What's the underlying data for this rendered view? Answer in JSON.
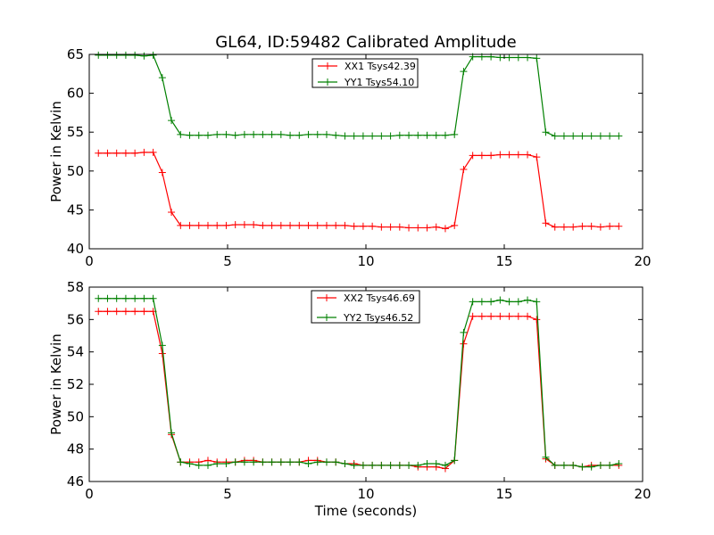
{
  "title": "GL64, ID:59482 Calibrated Amplitude",
  "chart_data": [
    {
      "type": "line",
      "title": "GL64, ID:59482 Calibrated Amplitude",
      "xlabel": "",
      "ylabel": "Power in Kelvin",
      "xlim": [
        0,
        20
      ],
      "ylim": [
        40,
        65
      ],
      "xticks": [
        0,
        5,
        10,
        15,
        20
      ],
      "yticks": [
        40,
        45,
        50,
        55,
        60,
        65
      ],
      "grid": false,
      "legend_placement": "top-center",
      "x": [
        0.33,
        0.66,
        0.99,
        1.32,
        1.65,
        1.98,
        2.31,
        2.64,
        2.97,
        3.3,
        3.63,
        3.96,
        4.29,
        4.62,
        4.95,
        5.28,
        5.61,
        5.94,
        6.27,
        6.6,
        6.93,
        7.26,
        7.59,
        7.92,
        8.25,
        8.58,
        8.91,
        9.24,
        9.57,
        9.9,
        10.23,
        10.56,
        10.89,
        11.22,
        11.55,
        11.88,
        12.21,
        12.54,
        12.87,
        13.2,
        13.53,
        13.86,
        14.19,
        14.52,
        14.85,
        15.18,
        15.51,
        15.84,
        16.17,
        16.5,
        16.83,
        17.16,
        17.49,
        17.82,
        18.15,
        18.48,
        18.81,
        19.14
      ],
      "series": [
        {
          "name": "XX1 Tsys42.39",
          "color": "#ff0000",
          "values": [
            52.3,
            52.3,
            52.3,
            52.3,
            52.3,
            52.4,
            52.4,
            49.8,
            44.7,
            43.0,
            43.0,
            43.0,
            43.0,
            43.0,
            43.0,
            43.1,
            43.1,
            43.1,
            43.0,
            43.0,
            43.0,
            43.0,
            43.0,
            43.0,
            43.0,
            43.0,
            43.0,
            43.0,
            42.9,
            42.9,
            42.9,
            42.8,
            42.8,
            42.8,
            42.7,
            42.7,
            42.7,
            42.8,
            42.6,
            43.0,
            50.2,
            52.0,
            52.0,
            52.0,
            52.1,
            52.1,
            52.1,
            52.1,
            51.8,
            43.3,
            42.8,
            42.8,
            42.8,
            42.9,
            42.9,
            42.8,
            42.9,
            42.9
          ]
        },
        {
          "name": "YY1 Tsys54.10",
          "color": "#008000",
          "values": [
            64.9,
            64.9,
            64.9,
            64.9,
            64.9,
            64.8,
            64.9,
            62.0,
            56.5,
            54.7,
            54.6,
            54.6,
            54.6,
            54.7,
            54.7,
            54.6,
            54.7,
            54.7,
            54.7,
            54.7,
            54.7,
            54.6,
            54.6,
            54.7,
            54.7,
            54.7,
            54.6,
            54.5,
            54.5,
            54.5,
            54.5,
            54.5,
            54.5,
            54.6,
            54.6,
            54.6,
            54.6,
            54.6,
            54.6,
            54.7,
            62.8,
            64.7,
            64.7,
            64.7,
            64.6,
            64.6,
            64.6,
            64.6,
            64.5,
            55.0,
            54.5,
            54.5,
            54.5,
            54.5,
            54.5,
            54.5,
            54.5,
            54.5
          ]
        }
      ]
    },
    {
      "type": "line",
      "title": "",
      "xlabel": "Time (seconds)",
      "ylabel": "Power in Kelvin",
      "xlim": [
        0,
        20
      ],
      "ylim": [
        46,
        58
      ],
      "xticks": [
        0,
        5,
        10,
        15,
        20
      ],
      "yticks": [
        46,
        48,
        50,
        52,
        54,
        56,
        58
      ],
      "grid": false,
      "legend_placement": "top-center",
      "x": [
        0.33,
        0.66,
        0.99,
        1.32,
        1.65,
        1.98,
        2.31,
        2.64,
        2.97,
        3.3,
        3.63,
        3.96,
        4.29,
        4.62,
        4.95,
        5.28,
        5.61,
        5.94,
        6.27,
        6.6,
        6.93,
        7.26,
        7.59,
        7.92,
        8.25,
        8.58,
        8.91,
        9.24,
        9.57,
        9.9,
        10.23,
        10.56,
        10.89,
        11.22,
        11.55,
        11.88,
        12.21,
        12.54,
        12.87,
        13.2,
        13.53,
        13.86,
        14.19,
        14.52,
        14.85,
        15.18,
        15.51,
        15.84,
        16.17,
        16.5,
        16.83,
        17.16,
        17.49,
        17.82,
        18.15,
        18.48,
        18.81,
        19.14
      ],
      "series": [
        {
          "name": "XX2 Tsys46.69",
          "color": "#ff0000",
          "values": [
            56.5,
            56.5,
            56.5,
            56.5,
            56.5,
            56.5,
            56.5,
            53.9,
            48.9,
            47.2,
            47.2,
            47.2,
            47.3,
            47.2,
            47.2,
            47.2,
            47.3,
            47.3,
            47.2,
            47.2,
            47.2,
            47.2,
            47.2,
            47.3,
            47.3,
            47.2,
            47.2,
            47.1,
            47.1,
            47.0,
            47.0,
            47.0,
            47.0,
            47.0,
            47.0,
            46.9,
            46.9,
            46.9,
            46.8,
            47.3,
            54.5,
            56.2,
            56.2,
            56.2,
            56.2,
            56.2,
            56.2,
            56.2,
            56.0,
            47.4,
            47.0,
            47.0,
            47.0,
            46.9,
            47.0,
            47.0,
            47.0,
            47.0
          ]
        },
        {
          "name": "YY2 Tsys46.52",
          "color": "#008000",
          "values": [
            57.3,
            57.3,
            57.3,
            57.3,
            57.3,
            57.3,
            57.3,
            54.4,
            49.0,
            47.2,
            47.1,
            47.0,
            47.0,
            47.1,
            47.1,
            47.2,
            47.2,
            47.2,
            47.2,
            47.2,
            47.2,
            47.2,
            47.2,
            47.1,
            47.2,
            47.2,
            47.2,
            47.1,
            47.0,
            47.0,
            47.0,
            47.0,
            47.0,
            47.0,
            47.0,
            47.0,
            47.1,
            47.1,
            47.0,
            47.3,
            55.2,
            57.1,
            57.1,
            57.1,
            57.2,
            57.1,
            57.1,
            57.2,
            57.1,
            47.5,
            47.0,
            47.0,
            47.0,
            46.9,
            46.9,
            47.0,
            47.0,
            47.1
          ]
        }
      ]
    }
  ]
}
